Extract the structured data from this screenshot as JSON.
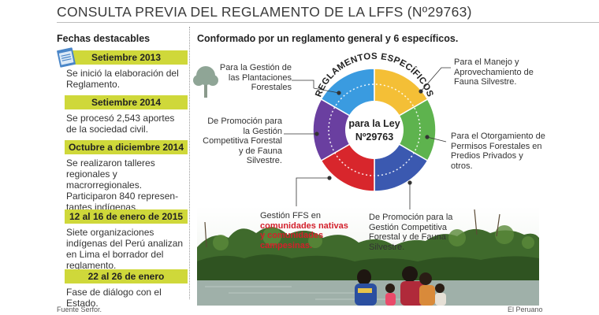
{
  "title": "CONSULTA PREVIA DEL REGLAMENTO DE LA LFFS (Nº29763)",
  "left": {
    "heading": "Fechas destacables",
    "events": [
      {
        "date": "Setiembre 2013",
        "text": "Se inició la elaboración del Reglamento."
      },
      {
        "date": "Setiembre 2014",
        "text": "Se procesó 2,543 aportes de la sociedad civil."
      },
      {
        "date": "Octubre a diciembre 2014",
        "text": "Se realizaron talleres regionales y macrorregionales. Participaron 840 represen-tantes indígenas."
      },
      {
        "date": "12 al 16 de enero de 2015",
        "text": "Siete organizaciones indígenas del Perú analizan en Lima el borrador del reglamento."
      },
      {
        "date": "22 al 26 de enero",
        "text": "Fase de diálogo con el Estado."
      }
    ]
  },
  "right": {
    "heading": "Conformado por un reglamento general y 6 específicos.",
    "arc_title": "REGLAMENTOS ESPECÍFICOS",
    "center_line1": "para la Ley",
    "center_line2": "Nº29763",
    "labels": {
      "plantaciones": "Para la Gestión de las Plantaciones Forestales",
      "promocion_left": "De Promoción para la Gestión Competitiva Forestal y de Fauna Silvestre.",
      "ffs_prefix": "Gestión FFS en",
      "ffs_highlight": "comunidades nativas y comunidades campesinas.",
      "promocion_bottom": "De Promoción para la Gestión Competitiva Forestal y de Fauna Silvestre.",
      "otorgamiento": "Para el Otorgamiento de Permisos Forestales en Predios Privados y otros.",
      "manejo": "Para el Manejo y Aprovechamiento de Fauna Silvestre."
    }
  },
  "colors": {
    "timeline_bar": "#cfd83a",
    "segment_blue_light": "#3a9be0",
    "segment_yellow": "#f4bf36",
    "segment_green": "#5eb34e",
    "segment_navy": "#3b59b0",
    "segment_red": "#d8262c",
    "segment_purple": "#6a3fa0",
    "highlight_red": "#d31f2b"
  },
  "footer": {
    "source": "Fuente Serfor.",
    "credit": "El Peruano"
  }
}
